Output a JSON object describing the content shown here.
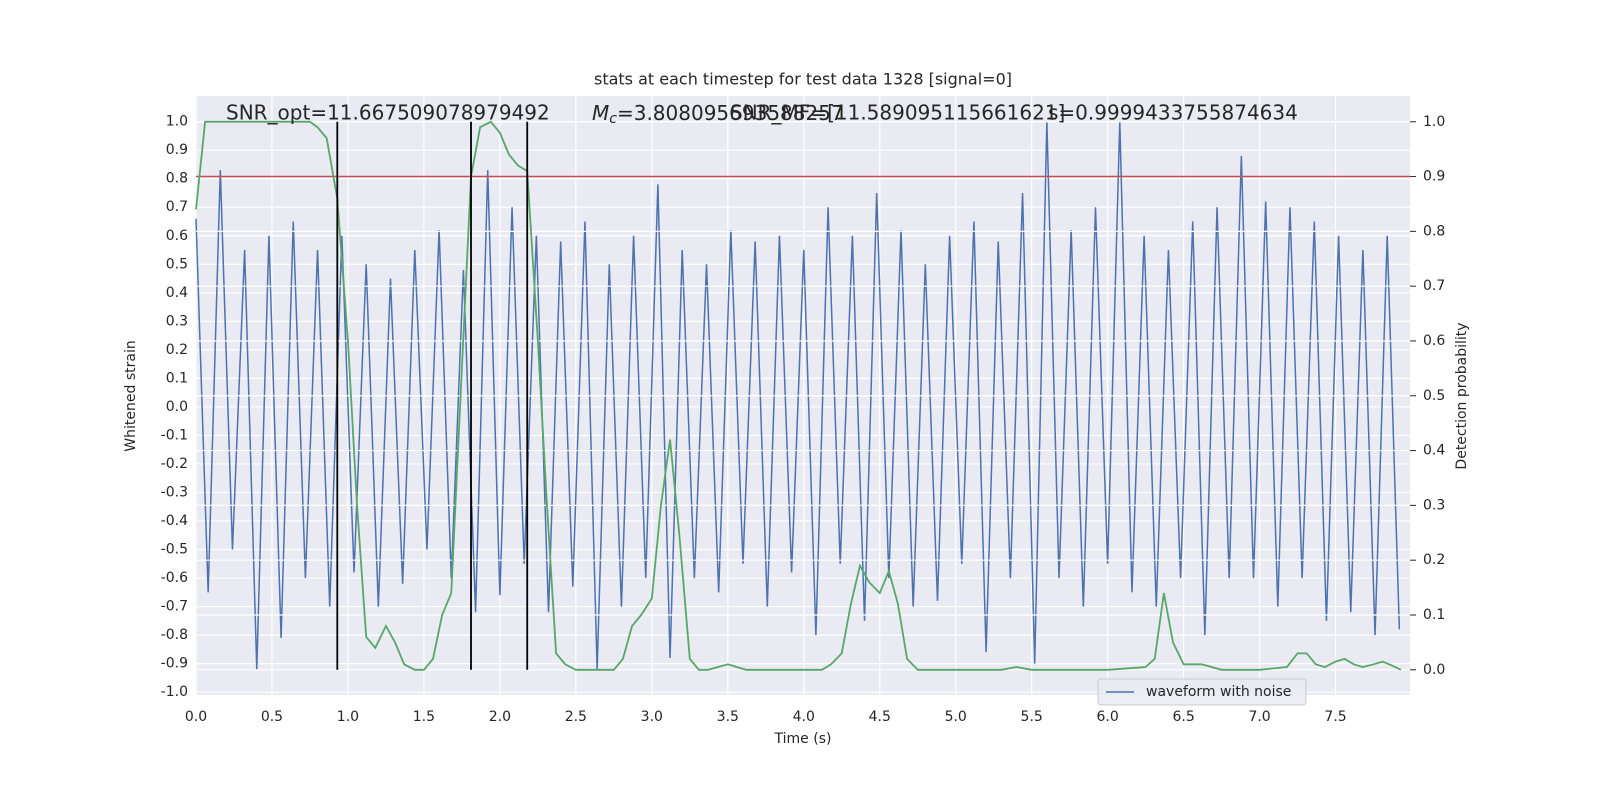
{
  "chart_data": {
    "type": "line",
    "title": "stats at each timestep for test data 1328 [signal=0]",
    "xlabel": "Time (s)",
    "ylabel": "Whitened strain",
    "y2label": "Detection probability",
    "xlim": [
      0,
      7.99
    ],
    "ylim": [
      -1.01,
      1.09
    ],
    "y2lim": [
      -0.046,
      1.047
    ],
    "xticks": [
      {
        "value": 0,
        "label": "0.0"
      },
      0.5,
      {
        "value": 1,
        "label": "1.0"
      },
      1.5,
      {
        "value": 2,
        "label": "2.0"
      },
      2.5,
      {
        "value": 3,
        "label": "3.0"
      },
      3.5,
      {
        "value": 4,
        "label": "4.0"
      },
      4.5,
      {
        "value": 5,
        "label": "5.0"
      },
      5.5,
      {
        "value": 6,
        "label": "6.0"
      },
      6.5,
      {
        "value": 7,
        "label": "7.0"
      },
      7.5
    ],
    "yticks": [
      {
        "value": -1,
        "label": "-1.0"
      },
      -0.9,
      -0.8,
      -0.7,
      -0.6,
      -0.5,
      -0.4,
      -0.3,
      -0.2,
      -0.1,
      {
        "value": 0,
        "label": "0.0"
      },
      0.1,
      0.2,
      0.3,
      0.4,
      0.5,
      0.6,
      0.7,
      0.8,
      0.9,
      {
        "value": 1,
        "label": "1.0"
      }
    ],
    "y2ticks": [
      {
        "value": 0,
        "label": "0.0"
      },
      0.1,
      0.2,
      0.3,
      0.4,
      0.5,
      0.6,
      0.7,
      0.8,
      0.9,
      {
        "value": 1,
        "label": "1.0"
      }
    ],
    "grid": true,
    "legend": "lower right",
    "annotations": [
      {
        "text": "SNR_opt=11.667509078979492"
      },
      {
        "symbol": "M",
        "subscript": "c",
        "text": "=3.808095693588257"
      },
      {
        "text": "SNR_MF=[11.589095115661621]"
      },
      {
        "text": "s=0.9999433755874634"
      }
    ],
    "series": [
      {
        "name": "waveform with noise",
        "color": "#4c72b0",
        "axis": "y",
        "x": [
          0,
          0.08,
          0.16,
          0.24,
          0.32,
          0.4,
          0.48,
          0.56,
          0.64,
          0.72,
          0.8,
          0.88,
          0.96,
          1.04,
          1.12,
          1.2,
          1.28,
          1.36,
          1.44,
          1.52,
          1.6,
          1.68,
          1.76,
          1.84,
          1.92,
          2,
          2.08,
          2.16,
          2.24,
          2.32,
          2.4,
          2.48,
          2.56,
          2.64,
          2.72,
          2.8,
          2.88,
          2.96,
          3.04,
          3.12,
          3.2,
          3.28,
          3.36,
          3.44,
          3.52,
          3.6,
          3.68,
          3.76,
          3.84,
          3.92,
          4,
          4.08,
          4.16,
          4.24,
          4.32,
          4.4,
          4.48,
          4.56,
          4.64,
          4.72,
          4.8,
          4.88,
          4.96,
          5.04,
          5.12,
          5.2,
          5.28,
          5.36,
          5.44,
          5.52,
          5.6,
          5.68,
          5.76,
          5.84,
          5.92,
          6,
          6.08,
          6.16,
          6.24,
          6.32,
          6.4,
          6.48,
          6.56,
          6.64,
          6.72,
          6.8,
          6.88,
          6.96,
          7.04,
          7.12,
          7.2,
          7.28,
          7.36,
          7.44,
          7.52,
          7.6,
          7.68,
          7.76,
          7.84,
          7.92
        ],
        "values": [
          0.66,
          -0.65,
          0.83,
          -0.5,
          0.55,
          -0.92,
          0.6,
          -0.81,
          0.65,
          -0.6,
          0.55,
          -0.7,
          0.6,
          -0.58,
          0.5,
          -0.7,
          0.45,
          -0.62,
          0.55,
          -0.5,
          0.62,
          -0.6,
          0.48,
          -0.72,
          0.83,
          -0.66,
          0.7,
          -0.55,
          0.6,
          -0.72,
          0.58,
          -0.63,
          0.65,
          -0.92,
          0.5,
          -0.7,
          0.6,
          -0.6,
          0.78,
          -0.88,
          0.55,
          -0.6,
          0.5,
          -0.65,
          0.62,
          -0.55,
          0.58,
          -0.7,
          0.6,
          -0.58,
          0.55,
          -0.8,
          0.7,
          -0.55,
          0.6,
          -0.75,
          0.75,
          -0.6,
          0.62,
          -0.7,
          0.5,
          -0.68,
          0.6,
          -0.55,
          0.65,
          -0.86,
          0.58,
          -0.6,
          0.75,
          -0.9,
          1.0,
          -0.6,
          0.62,
          -0.7,
          0.7,
          -0.55,
          1.0,
          -0.65,
          0.6,
          -0.7,
          0.55,
          -0.6,
          0.65,
          -0.8,
          0.7,
          -0.6,
          0.88,
          -0.6,
          0.72,
          -0.7,
          0.7,
          -0.6,
          0.65,
          -0.75,
          0.6,
          -0.72,
          0.55,
          -0.8,
          0.6,
          -0.78
        ]
      }
    ],
    "probability": {
      "color": "#55a868",
      "axis": "y2",
      "x": [
        0,
        0.06,
        0.12,
        0.25,
        0.5,
        0.75,
        0.8,
        0.86,
        0.93,
        1.0,
        1.06,
        1.12,
        1.18,
        1.25,
        1.31,
        1.37,
        1.44,
        1.5,
        1.56,
        1.62,
        1.68,
        1.75,
        1.81,
        1.87,
        1.94,
        2.0,
        2.06,
        2.12,
        2.18,
        2.25,
        2.31,
        2.37,
        2.43,
        2.5,
        2.62,
        2.75,
        2.81,
        2.87,
        2.93,
        3.0,
        3.06,
        3.12,
        3.18,
        3.25,
        3.31,
        3.37,
        3.5,
        3.62,
        3.75,
        3.9,
        4.0,
        4.12,
        4.18,
        4.25,
        4.31,
        4.37,
        4.43,
        4.5,
        4.56,
        4.62,
        4.68,
        4.75,
        5.0,
        5.3,
        5.4,
        5.5,
        6.0,
        6.25,
        6.31,
        6.37,
        6.43,
        6.5,
        6.62,
        6.75,
        7.0,
        7.18,
        7.25,
        7.31,
        7.37,
        7.43,
        7.5,
        7.56,
        7.62,
        7.68,
        7.75,
        7.81,
        7.87,
        7.93
      ],
      "values": [
        0.84,
        1.0,
        1.0,
        1.0,
        1.0,
        1.0,
        0.99,
        0.97,
        0.86,
        0.6,
        0.3,
        0.06,
        0.04,
        0.08,
        0.05,
        0.01,
        0.0,
        0.0,
        0.02,
        0.1,
        0.14,
        0.55,
        0.9,
        0.99,
        1.0,
        0.98,
        0.94,
        0.92,
        0.91,
        0.6,
        0.3,
        0.03,
        0.01,
        0.0,
        0.0,
        0.0,
        0.02,
        0.08,
        0.1,
        0.13,
        0.3,
        0.42,
        0.25,
        0.02,
        0.0,
        0.0,
        0.01,
        0.0,
        0.0,
        0.0,
        0.0,
        0.0,
        0.01,
        0.03,
        0.12,
        0.19,
        0.16,
        0.14,
        0.18,
        0.12,
        0.02,
        0.0,
        0.0,
        0.0,
        0.005,
        0.0,
        0.0,
        0.005,
        0.02,
        0.14,
        0.05,
        0.01,
        0.01,
        0.0,
        0.0,
        0.005,
        0.03,
        0.03,
        0.01,
        0.005,
        0.015,
        0.02,
        0.01,
        0.005,
        0.01,
        0.015,
        0.008,
        0.0
      ]
    },
    "threshold": {
      "value": 0.9,
      "axis": "y2",
      "color": "#c44e52"
    },
    "vlines": {
      "x": [
        0.93,
        1.81,
        2.18
      ],
      "y2range": [
        0,
        1
      ],
      "color": "#000000"
    }
  }
}
